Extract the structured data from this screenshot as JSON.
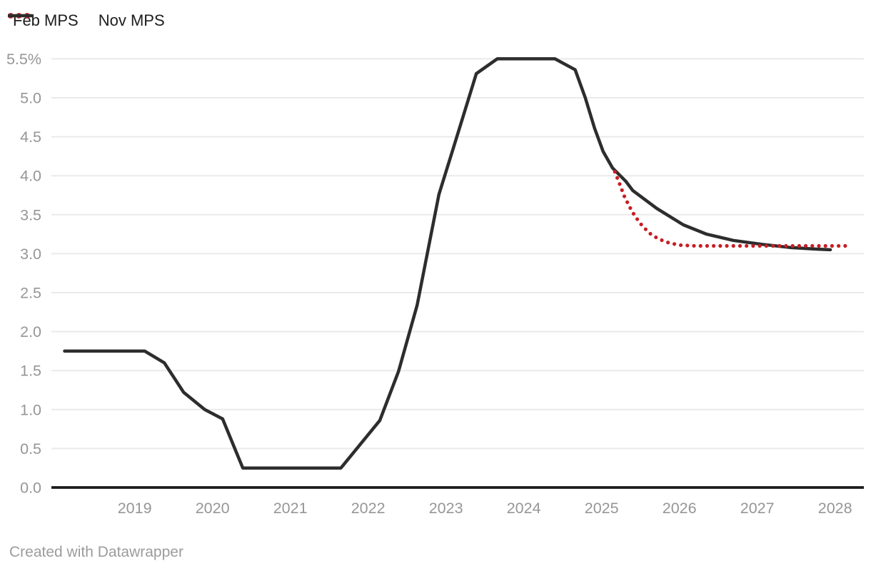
{
  "legend": {
    "items": [
      {
        "label": "Feb MPS",
        "swatch": "dotted",
        "color": "#c81e23"
      },
      {
        "label": "Nov MPS",
        "swatch": "solid",
        "color": "#2d2d2d"
      }
    ]
  },
  "footer": {
    "text": "Created with Datawrapper"
  },
  "chart_data": {
    "type": "line",
    "title": "",
    "xlabel": "",
    "ylabel": "",
    "unit": "%",
    "grid": true,
    "legend_position": "top-left",
    "xlim": [
      2017.93,
      2028.37
    ],
    "ylim": [
      0,
      5.5
    ],
    "x_ticks": [
      2019,
      2020,
      2021,
      2022,
      2023,
      2024,
      2025,
      2026,
      2027,
      2028
    ],
    "y_ticks": [
      {
        "value": 0.0,
        "label": "0.0"
      },
      {
        "value": 0.5,
        "label": "0.5"
      },
      {
        "value": 1.0,
        "label": "1.0"
      },
      {
        "value": 1.5,
        "label": "1.5"
      },
      {
        "value": 2.0,
        "label": "2.0"
      },
      {
        "value": 2.5,
        "label": "2.5"
      },
      {
        "value": 3.0,
        "label": "3.0"
      },
      {
        "value": 3.5,
        "label": "3.5"
      },
      {
        "value": 4.0,
        "label": "4.0"
      },
      {
        "value": 4.5,
        "label": "4.5"
      },
      {
        "value": 5.0,
        "label": "5.0"
      },
      {
        "value": 5.5,
        "label": "5.5%"
      }
    ],
    "colors": {
      "grid": "#eaeaea",
      "axis": "#1b1b1b",
      "tick_label": "#969696",
      "feb_mps": "#c81e23",
      "nov_mps": "#2d2d2d"
    },
    "series": [
      {
        "name": "Feb MPS",
        "color": "#c81e23",
        "style": "dotted",
        "points": [
          [
            2025.17,
            4.05
          ],
          [
            2025.23,
            3.9
          ],
          [
            2025.29,
            3.74
          ],
          [
            2025.36,
            3.6
          ],
          [
            2025.43,
            3.48
          ],
          [
            2025.52,
            3.36
          ],
          [
            2025.62,
            3.26
          ],
          [
            2025.73,
            3.19
          ],
          [
            2025.86,
            3.14
          ],
          [
            2026.0,
            3.11
          ],
          [
            2026.2,
            3.1
          ],
          [
            2028.17,
            3.1
          ]
        ]
      },
      {
        "name": "Nov MPS",
        "color": "#2d2d2d",
        "style": "solid",
        "points": [
          [
            2018.1,
            1.75
          ],
          [
            2019.13,
            1.75
          ],
          [
            2019.38,
            1.6
          ],
          [
            2019.63,
            1.22
          ],
          [
            2019.9,
            1.0
          ],
          [
            2020.13,
            0.88
          ],
          [
            2020.39,
            0.25
          ],
          [
            2021.65,
            0.25
          ],
          [
            2022.15,
            0.86
          ],
          [
            2022.39,
            1.49
          ],
          [
            2022.63,
            2.34
          ],
          [
            2022.91,
            3.76
          ],
          [
            2023.14,
            4.5
          ],
          [
            2023.39,
            5.31
          ],
          [
            2023.66,
            5.5
          ],
          [
            2024.4,
            5.5
          ],
          [
            2024.66,
            5.36
          ],
          [
            2024.79,
            5.0
          ],
          [
            2024.91,
            4.61
          ],
          [
            2025.02,
            4.31
          ],
          [
            2025.14,
            4.1
          ],
          [
            2025.31,
            3.93
          ],
          [
            2025.4,
            3.81
          ],
          [
            2025.71,
            3.58
          ],
          [
            2026.05,
            3.37
          ],
          [
            2026.35,
            3.25
          ],
          [
            2026.69,
            3.17
          ],
          [
            2027.06,
            3.12
          ],
          [
            2027.42,
            3.08
          ],
          [
            2027.72,
            3.06
          ],
          [
            2027.94,
            3.05
          ]
        ]
      }
    ]
  }
}
